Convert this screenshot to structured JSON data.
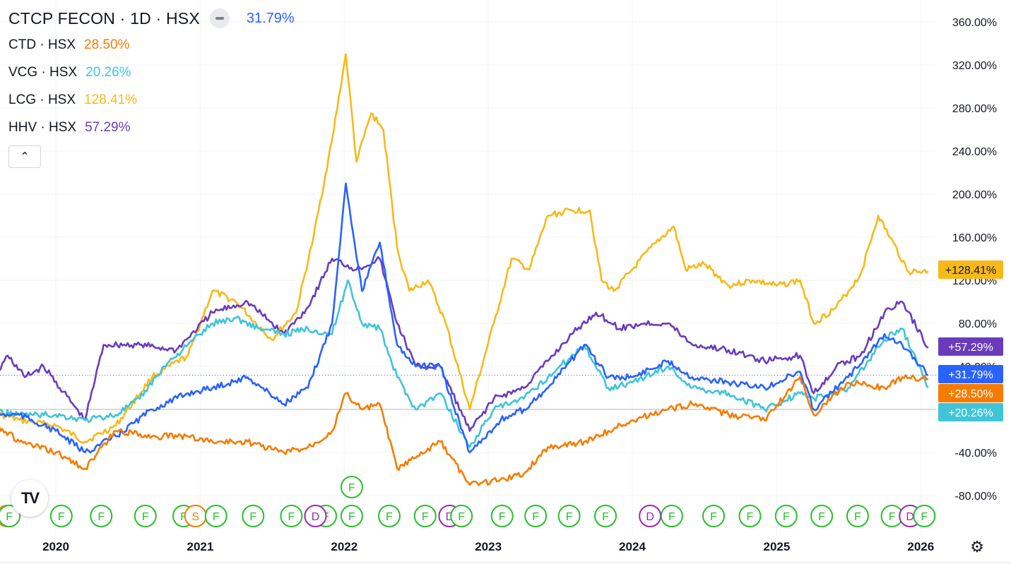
{
  "header": {
    "title": "CTCP FECON · 1D · HSX",
    "main_value": "31.79%",
    "collapse_icon": "chevron-up-icon"
  },
  "legend": [
    {
      "label": "CTD · HSX",
      "value": "28.50%",
      "color": "#f57c00"
    },
    {
      "label": "VCG · HSX",
      "value": "20.26%",
      "color": "#40c4d8"
    },
    {
      "label": "LCG · HSX",
      "value": "128.41%",
      "color": "#f7b91a"
    },
    {
      "label": "HHV · HSX",
      "value": "57.29%",
      "color": "#6a3cbc"
    }
  ],
  "chart_data": {
    "type": "line",
    "x_range": [
      "2019-07",
      "2026-03"
    ],
    "ylim": [
      -100,
      370
    ],
    "y_ticks": [
      "360.00%",
      "320.00%",
      "280.00%",
      "240.00%",
      "200.00%",
      "160.00%",
      "120.00%",
      "80.00%",
      "40.00%",
      "0.00%",
      "-40.00%",
      "-80.00%"
    ],
    "x_ticks": [
      "2020",
      "2021",
      "2022",
      "2023",
      "2024",
      "2025",
      "2026"
    ],
    "x_tick_dates": [
      "2020-01-01",
      "2021-01-01",
      "2022-01-01",
      "2023-01-01",
      "2024-01-01",
      "2025-01-01",
      "2026-01-01"
    ],
    "reference_lines": [
      {
        "value": 0,
        "style": "solid",
        "color": "#b2b5be"
      },
      {
        "value": 31.79,
        "style": "dotted",
        "color": "#2962ff"
      }
    ],
    "series": [
      {
        "name": "LCG · HSX",
        "color": "#f7b91a",
        "last_label": "+128.41%",
        "points": [
          [
            "2019-07-01",
            0
          ],
          [
            "2019-10-01",
            -10
          ],
          [
            "2020-01-01",
            -15
          ],
          [
            "2020-03-15",
            -30
          ],
          [
            "2020-06-01",
            -15
          ],
          [
            "2020-09-01",
            30
          ],
          [
            "2020-12-01",
            50
          ],
          [
            "2021-02-01",
            110
          ],
          [
            "2021-04-01",
            100
          ],
          [
            "2021-07-01",
            65
          ],
          [
            "2021-09-01",
            90
          ],
          [
            "2021-10-15",
            160
          ],
          [
            "2021-12-01",
            250
          ],
          [
            "2022-01-05",
            330
          ],
          [
            "2022-02-01",
            230
          ],
          [
            "2022-03-10",
            275
          ],
          [
            "2022-04-10",
            260
          ],
          [
            "2022-05-15",
            150
          ],
          [
            "2022-06-15",
            110
          ],
          [
            "2022-08-01",
            120
          ],
          [
            "2022-09-15",
            80
          ],
          [
            "2022-11-15",
            0
          ],
          [
            "2023-01-15",
            80
          ],
          [
            "2023-03-01",
            140
          ],
          [
            "2023-04-15",
            130
          ],
          [
            "2023-06-01",
            180
          ],
          [
            "2023-08-01",
            185
          ],
          [
            "2023-09-15",
            185
          ],
          [
            "2023-10-15",
            120
          ],
          [
            "2023-11-15",
            110
          ],
          [
            "2024-01-01",
            130
          ],
          [
            "2024-03-01",
            155
          ],
          [
            "2024-04-15",
            170
          ],
          [
            "2024-05-15",
            130
          ],
          [
            "2024-07-01",
            135
          ],
          [
            "2024-09-01",
            115
          ],
          [
            "2024-11-01",
            120
          ],
          [
            "2025-01-01",
            115
          ],
          [
            "2025-03-01",
            120
          ],
          [
            "2025-04-05",
            80
          ],
          [
            "2025-06-01",
            95
          ],
          [
            "2025-08-01",
            125
          ],
          [
            "2025-09-15",
            180
          ],
          [
            "2025-10-15",
            160
          ],
          [
            "2025-12-01",
            128
          ],
          [
            "2026-01-20",
            128.41
          ]
        ]
      },
      {
        "name": "HHV · HSX",
        "color": "#6a3cbc",
        "last_label": "+57.29%",
        "points": [
          [
            "2019-07-01",
            10
          ],
          [
            "2019-09-01",
            50
          ],
          [
            "2019-10-15",
            30
          ],
          [
            "2019-12-01",
            40
          ],
          [
            "2020-03-15",
            -10
          ],
          [
            "2020-05-01",
            60
          ],
          [
            "2020-08-01",
            60
          ],
          [
            "2020-11-01",
            55
          ],
          [
            "2021-02-01",
            90
          ],
          [
            "2021-05-01",
            100
          ],
          [
            "2021-08-01",
            70
          ],
          [
            "2021-10-01",
            95
          ],
          [
            "2021-12-01",
            140
          ],
          [
            "2022-02-01",
            130
          ],
          [
            "2022-04-01",
            140
          ],
          [
            "2022-05-15",
            80
          ],
          [
            "2022-07-01",
            40
          ],
          [
            "2022-09-01",
            40
          ],
          [
            "2022-11-15",
            -20
          ],
          [
            "2023-01-15",
            10
          ],
          [
            "2023-04-01",
            20
          ],
          [
            "2023-06-01",
            45
          ],
          [
            "2023-08-01",
            70
          ],
          [
            "2023-10-01",
            90
          ],
          [
            "2023-12-01",
            75
          ],
          [
            "2024-02-01",
            80
          ],
          [
            "2024-04-01",
            80
          ],
          [
            "2024-06-01",
            60
          ],
          [
            "2024-09-01",
            55
          ],
          [
            "2024-12-01",
            45
          ],
          [
            "2025-03-01",
            50
          ],
          [
            "2025-04-05",
            15
          ],
          [
            "2025-06-01",
            40
          ],
          [
            "2025-08-01",
            50
          ],
          [
            "2025-10-01",
            90
          ],
          [
            "2025-11-15",
            100
          ],
          [
            "2026-01-20",
            57.29
          ]
        ]
      },
      {
        "name": "VCG · HSX",
        "color": "#40c4d8",
        "last_label": "+20.26%",
        "points": [
          [
            "2019-07-01",
            0
          ],
          [
            "2019-10-01",
            -5
          ],
          [
            "2020-01-01",
            -5
          ],
          [
            "2020-03-15",
            -10
          ],
          [
            "2020-06-01",
            -5
          ],
          [
            "2020-08-01",
            10
          ],
          [
            "2020-10-01",
            40
          ],
          [
            "2020-12-01",
            60
          ],
          [
            "2021-02-01",
            80
          ],
          [
            "2021-04-01",
            85
          ],
          [
            "2021-06-01",
            75
          ],
          [
            "2021-08-01",
            70
          ],
          [
            "2021-10-01",
            75
          ],
          [
            "2021-12-01",
            70
          ],
          [
            "2022-01-10",
            120
          ],
          [
            "2022-02-15",
            80
          ],
          [
            "2022-04-01",
            75
          ],
          [
            "2022-05-15",
            30
          ],
          [
            "2022-07-01",
            0
          ],
          [
            "2022-09-01",
            15
          ],
          [
            "2022-11-15",
            -35
          ],
          [
            "2023-01-15",
            0
          ],
          [
            "2023-04-01",
            10
          ],
          [
            "2023-06-01",
            30
          ],
          [
            "2023-09-01",
            60
          ],
          [
            "2023-11-01",
            20
          ],
          [
            "2024-01-01",
            25
          ],
          [
            "2024-04-01",
            40
          ],
          [
            "2024-06-01",
            20
          ],
          [
            "2024-09-01",
            15
          ],
          [
            "2024-12-01",
            0
          ],
          [
            "2025-03-01",
            15
          ],
          [
            "2025-04-05",
            10
          ],
          [
            "2025-07-01",
            20
          ],
          [
            "2025-10-01",
            65
          ],
          [
            "2025-11-15",
            75
          ],
          [
            "2026-01-20",
            20.26
          ]
        ]
      },
      {
        "name": "CTCP FECON · 1D · HSX",
        "color": "#2962ff",
        "last_label": "+31.79%",
        "points": [
          [
            "2019-07-01",
            -5
          ],
          [
            "2019-10-01",
            -5
          ],
          [
            "2020-01-01",
            -20
          ],
          [
            "2020-03-15",
            -40
          ],
          [
            "2020-06-01",
            -25
          ],
          [
            "2020-09-01",
            0
          ],
          [
            "2020-12-01",
            15
          ],
          [
            "2021-02-01",
            20
          ],
          [
            "2021-05-01",
            30
          ],
          [
            "2021-08-01",
            5
          ],
          [
            "2021-10-01",
            20
          ],
          [
            "2021-12-01",
            80
          ],
          [
            "2022-01-05",
            210
          ],
          [
            "2022-02-15",
            110
          ],
          [
            "2022-04-01",
            155
          ],
          [
            "2022-05-15",
            60
          ],
          [
            "2022-07-01",
            40
          ],
          [
            "2022-09-01",
            40
          ],
          [
            "2022-11-15",
            -40
          ],
          [
            "2023-02-01",
            -10
          ],
          [
            "2023-04-01",
            0
          ],
          [
            "2023-06-01",
            20
          ],
          [
            "2023-09-01",
            60
          ],
          [
            "2023-11-01",
            30
          ],
          [
            "2024-01-01",
            30
          ],
          [
            "2024-04-01",
            45
          ],
          [
            "2024-06-01",
            30
          ],
          [
            "2024-09-01",
            25
          ],
          [
            "2024-12-01",
            20
          ],
          [
            "2025-03-01",
            35
          ],
          [
            "2025-04-05",
            0
          ],
          [
            "2025-07-01",
            30
          ],
          [
            "2025-10-01",
            70
          ],
          [
            "2025-11-15",
            60
          ],
          [
            "2026-01-20",
            31.79
          ]
        ]
      },
      {
        "name": "CTD · HSX",
        "color": "#f57c00",
        "last_label": "+28.50%",
        "points": [
          [
            "2019-07-01",
            -5
          ],
          [
            "2019-10-01",
            -30
          ],
          [
            "2020-01-01",
            -40
          ],
          [
            "2020-03-15",
            -55
          ],
          [
            "2020-06-01",
            -20
          ],
          [
            "2020-09-01",
            -25
          ],
          [
            "2020-12-01",
            -25
          ],
          [
            "2021-02-01",
            -30
          ],
          [
            "2021-05-01",
            -30
          ],
          [
            "2021-08-01",
            -40
          ],
          [
            "2021-10-01",
            -35
          ],
          [
            "2021-12-01",
            -20
          ],
          [
            "2022-01-05",
            15
          ],
          [
            "2022-02-15",
            0
          ],
          [
            "2022-04-01",
            5
          ],
          [
            "2022-05-15",
            -55
          ],
          [
            "2022-07-01",
            -45
          ],
          [
            "2022-09-01",
            -30
          ],
          [
            "2022-11-15",
            -70
          ],
          [
            "2023-02-01",
            -65
          ],
          [
            "2023-04-01",
            -60
          ],
          [
            "2023-06-01",
            -35
          ],
          [
            "2023-09-01",
            -30
          ],
          [
            "2023-11-01",
            -20
          ],
          [
            "2024-01-01",
            -10
          ],
          [
            "2024-04-01",
            0
          ],
          [
            "2024-06-01",
            5
          ],
          [
            "2024-09-01",
            -5
          ],
          [
            "2024-12-01",
            -10
          ],
          [
            "2025-03-01",
            30
          ],
          [
            "2025-04-05",
            -5
          ],
          [
            "2025-07-01",
            25
          ],
          [
            "2025-10-01",
            20
          ],
          [
            "2025-11-15",
            30
          ],
          [
            "2026-01-20",
            28.5
          ]
        ]
      }
    ],
    "event_marker_row": [
      {
        "date": "2019-08-01",
        "label": "S",
        "color": "#f57c00"
      },
      {
        "date": "2019-09-05",
        "label": "F",
        "color": "#26c12a"
      },
      {
        "date": "2020-01-15",
        "label": "F",
        "color": "#26c12a"
      },
      {
        "date": "2020-04-25",
        "label": "F",
        "color": "#26c12a"
      },
      {
        "date": "2020-08-15",
        "label": "F",
        "color": "#26c12a"
      },
      {
        "date": "2020-11-20",
        "label": "F",
        "color": "#26c12a"
      },
      {
        "date": "2020-12-20",
        "label": "S",
        "color": "#f57c00"
      },
      {
        "date": "2021-02-10",
        "label": "F",
        "color": "#26c12a"
      },
      {
        "date": "2021-05-15",
        "label": "F",
        "color": "#26c12a"
      },
      {
        "date": "2021-08-20",
        "label": "F",
        "color": "#26c12a"
      },
      {
        "date": "2021-11-15",
        "label": "F",
        "color": "#26c12a"
      },
      {
        "date": "2021-10-20",
        "label": "D",
        "color": "#9c27b0"
      },
      {
        "date": "2022-01-20",
        "label": "F",
        "color": "#26c12a"
      },
      {
        "date": "2022-04-25",
        "label": "F",
        "color": "#26c12a"
      },
      {
        "date": "2022-07-25",
        "label": "F",
        "color": "#26c12a"
      },
      {
        "date": "2022-09-25",
        "label": "D",
        "color": "#9c27b0"
      },
      {
        "date": "2022-10-25",
        "label": "F",
        "color": "#26c12a"
      },
      {
        "date": "2023-02-05",
        "label": "F",
        "color": "#26c12a"
      },
      {
        "date": "2023-05-01",
        "label": "F",
        "color": "#26c12a"
      },
      {
        "date": "2023-07-25",
        "label": "F",
        "color": "#26c12a"
      },
      {
        "date": "2023-10-25",
        "label": "F",
        "color": "#26c12a"
      },
      {
        "date": "2024-02-15",
        "label": "D",
        "color": "#9c27b0"
      },
      {
        "date": "2024-04-10",
        "label": "F",
        "color": "#26c12a"
      },
      {
        "date": "2024-07-25",
        "label": "F",
        "color": "#26c12a"
      },
      {
        "date": "2024-10-25",
        "label": "F",
        "color": "#26c12a"
      },
      {
        "date": "2025-01-25",
        "label": "F",
        "color": "#26c12a"
      },
      {
        "date": "2025-04-25",
        "label": "F",
        "color": "#26c12a"
      },
      {
        "date": "2025-07-25",
        "label": "F",
        "color": "#26c12a"
      },
      {
        "date": "2025-10-20",
        "label": "F",
        "color": "#26c12a"
      },
      {
        "date": "2025-12-05",
        "label": "D",
        "color": "#9c27b0"
      },
      {
        "date": "2026-01-10",
        "label": "F",
        "color": "#26c12a"
      }
    ],
    "raised_markers": [
      {
        "date": "2022-01-20",
        "label": "F",
        "color": "#26c12a"
      }
    ],
    "grid": true,
    "legend": "top-left"
  },
  "settings_icon": "gear-icon",
  "logo_icon": "tradingview-logo-icon",
  "logo_text": "TV"
}
